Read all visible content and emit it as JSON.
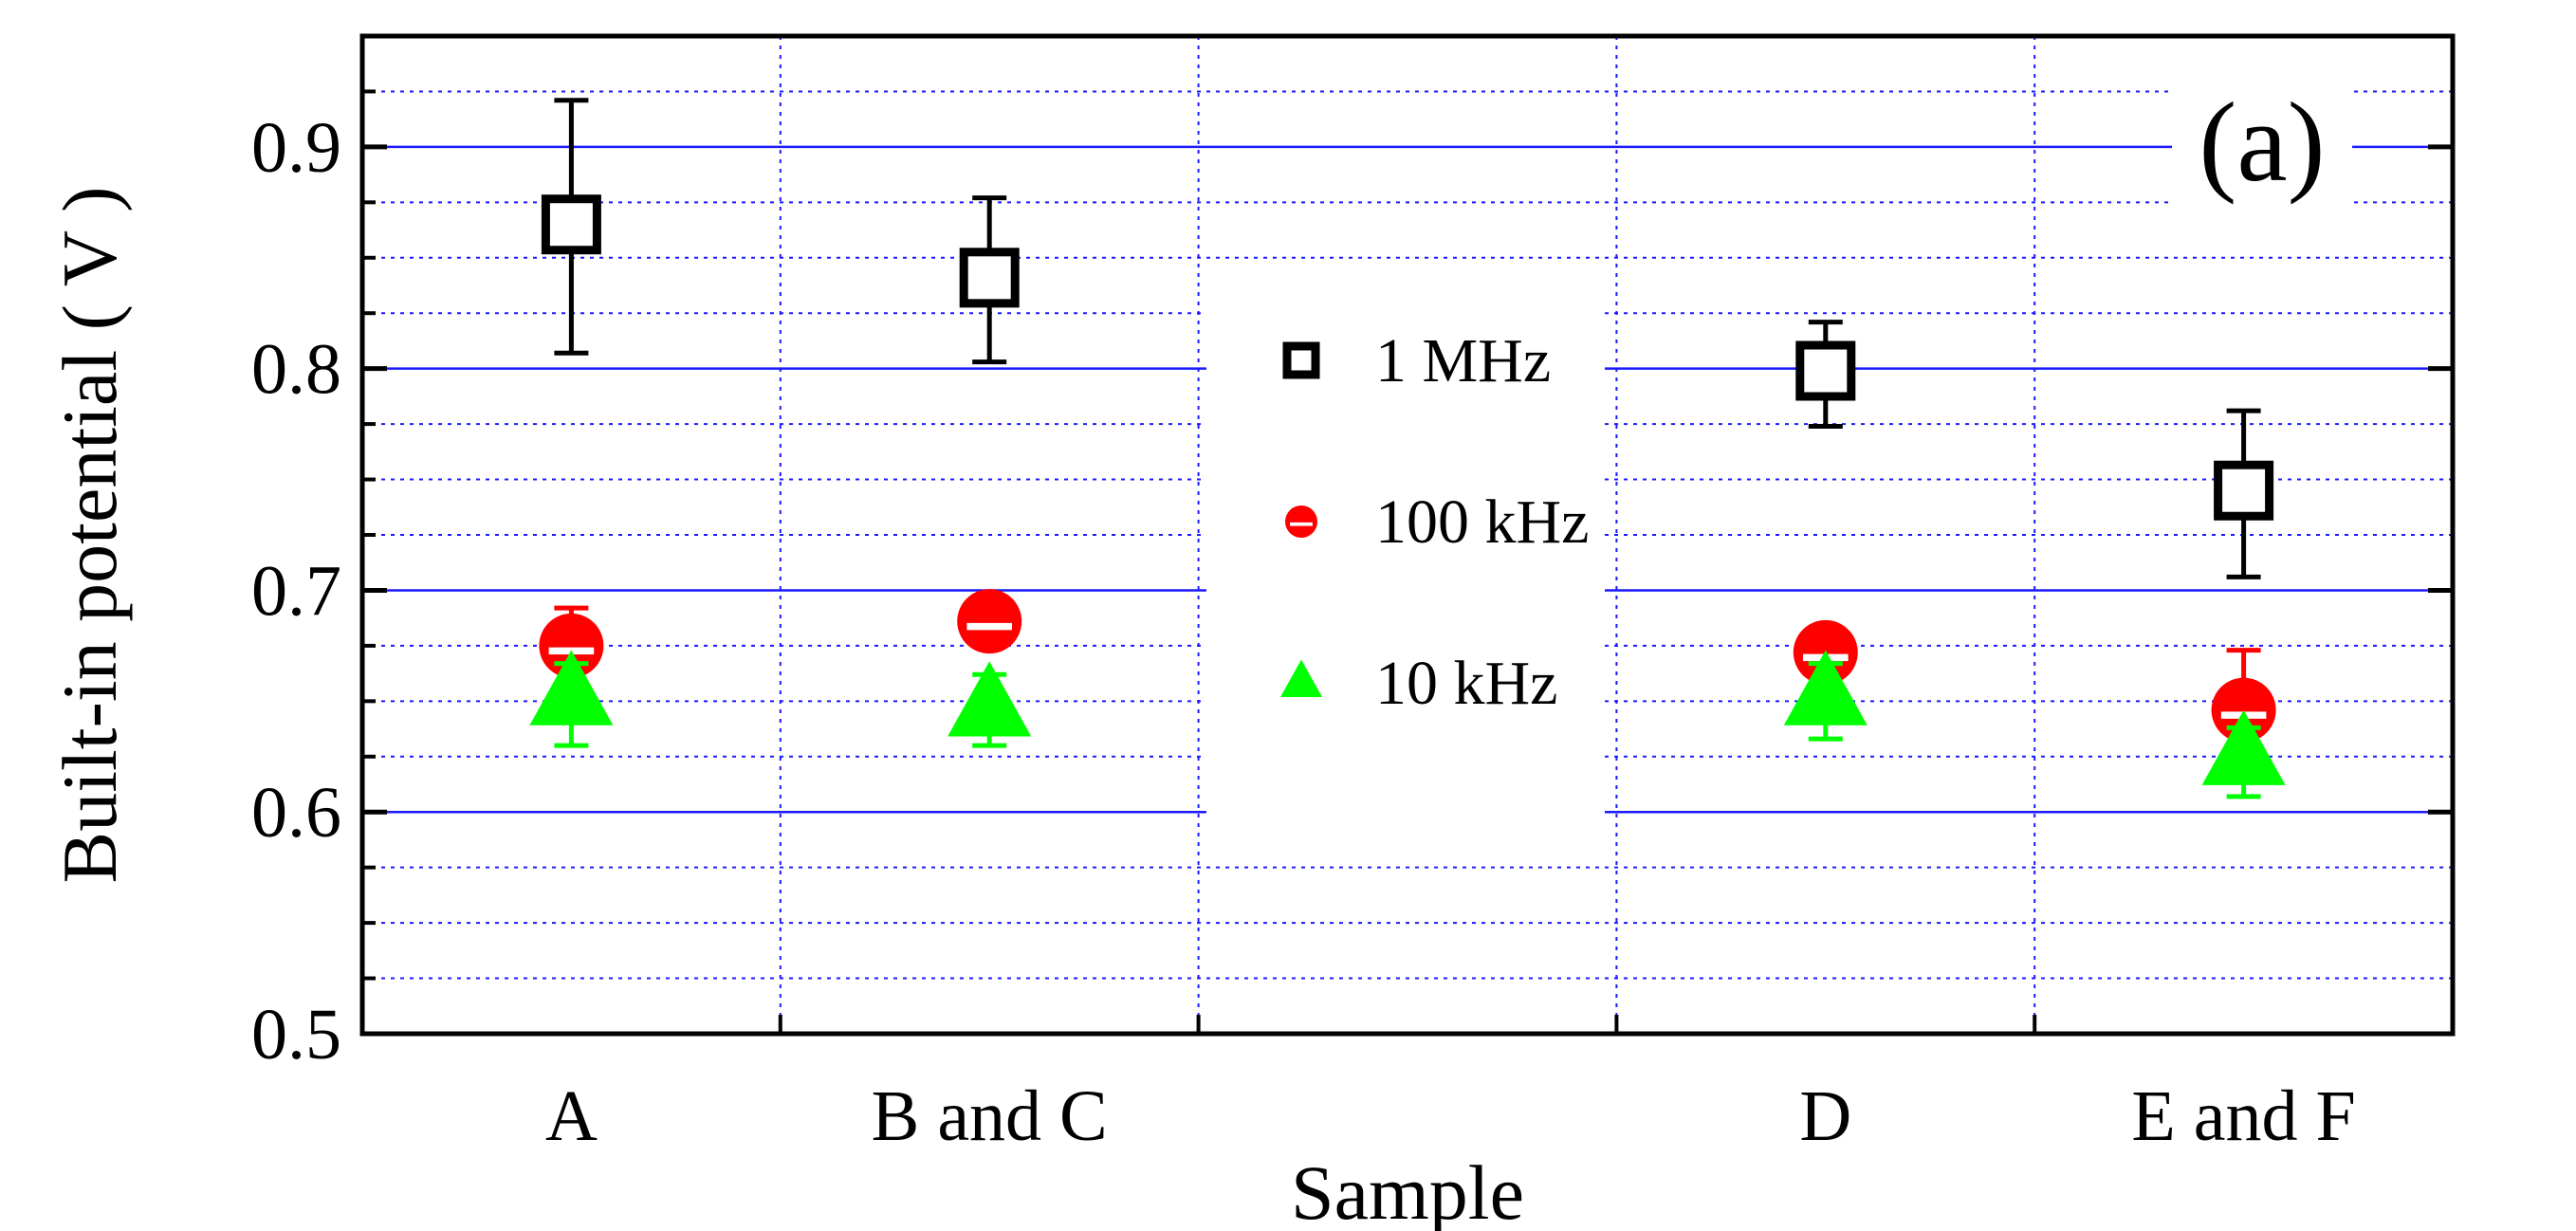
{
  "chart_data": {
    "type": "scatter",
    "panel_label": "(a)",
    "xlabel": "Sample",
    "ylabel": "Built-in potential ( V )",
    "ylim": [
      0.5,
      0.95
    ],
    "yticks": [
      "0.5",
      "0.6",
      "0.7",
      "0.8",
      "0.9"
    ],
    "categories": [
      "A",
      "B and C",
      "",
      "D",
      "E and F"
    ],
    "grid": "major solid blue, minor dotted blue",
    "legend_position": "center",
    "series": [
      {
        "name": "1 MHz",
        "marker": "open-square",
        "color": "#000000",
        "points": [
          {
            "category": "A",
            "y": 0.865,
            "err_low": 0.807,
            "err_high": 0.921
          },
          {
            "category": "B and C",
            "y": 0.841,
            "err_low": 0.803,
            "err_high": 0.877
          },
          {
            "category": "D",
            "y": 0.799,
            "err_low": 0.774,
            "err_high": 0.821
          },
          {
            "category": "E and F",
            "y": 0.745,
            "err_low": 0.706,
            "err_high": 0.781
          }
        ]
      },
      {
        "name": "100 kHz",
        "marker": "half-circle",
        "color": "#ff0000",
        "points": [
          {
            "category": "A",
            "y": 0.675,
            "err_low": 0.655,
            "err_high": 0.692
          },
          {
            "category": "B and C",
            "y": 0.686,
            "err_low": 0.686,
            "err_high": 0.686
          },
          {
            "category": "D",
            "y": 0.672,
            "err_low": 0.672,
            "err_high": 0.672
          },
          {
            "category": "E and F",
            "y": 0.646,
            "err_low": 0.618,
            "err_high": 0.673
          }
        ]
      },
      {
        "name": "10 kHz",
        "marker": "filled-triangle",
        "color": "#00ff00",
        "points": [
          {
            "category": "A",
            "y": 0.652,
            "err_low": 0.63,
            "err_high": 0.667
          },
          {
            "category": "B and C",
            "y": 0.647,
            "err_low": 0.63,
            "err_high": 0.662
          },
          {
            "category": "D",
            "y": 0.652,
            "err_low": 0.633,
            "err_high": 0.667
          },
          {
            "category": "E and F",
            "y": 0.625,
            "err_low": 0.607,
            "err_high": 0.638
          }
        ]
      }
    ]
  }
}
